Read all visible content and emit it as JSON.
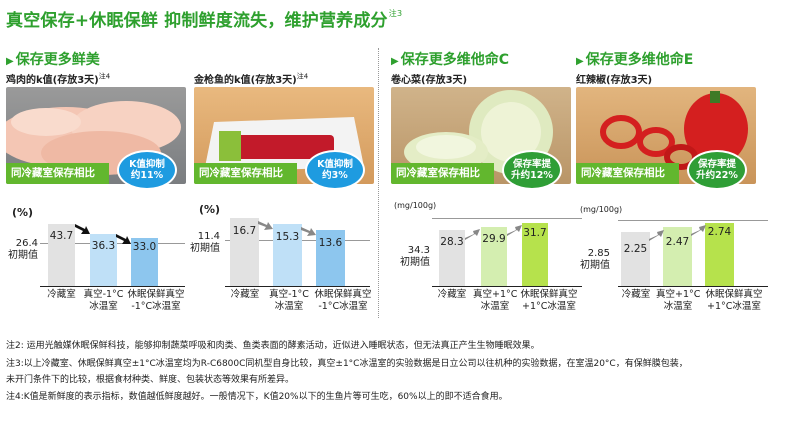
{
  "headline": {
    "text": "真空保存+休眠保鲜  抑制鲜度流失，维护营养成分",
    "note_mark": "注3"
  },
  "sections": {
    "left_title": "保存更多鲜美",
    "mid_title": "保存更多维他命C",
    "right_title": "保存更多维他命E"
  },
  "panels": [
    {
      "label": "鸡肉的k值(存放3天)",
      "note_mark": "注4",
      "compare": "同冷藏室保存相比",
      "badge": [
        "K值抑制",
        "约11%"
      ],
      "unit": "(%)",
      "base_value": "26.4",
      "base_label": "初期值",
      "bars": [
        "43.7",
        "36.3",
        "33.0"
      ],
      "xlabels": [
        [
          "冷藏室",
          ""
        ],
        [
          "真空-1°C",
          "冰温室"
        ],
        [
          "休眠保鲜真空",
          "-1°C冰温室"
        ]
      ]
    },
    {
      "label": "金枪鱼的k值(存放3天)",
      "note_mark": "注4",
      "compare": "同冷藏室保存相比",
      "badge": [
        "K值抑制",
        "约3%"
      ],
      "unit": "(%)",
      "base_value": "11.4",
      "base_label": "初期值",
      "bars": [
        "16.7",
        "15.3",
        "13.6"
      ],
      "xlabels": [
        [
          "冷藏室",
          ""
        ],
        [
          "真空-1°C",
          "冰温室"
        ],
        [
          "休眠保鲜真空",
          "-1°C冰温室"
        ]
      ]
    },
    {
      "label": "卷心菜(存放3天)",
      "note_mark": "",
      "compare": "同冷藏室保存相比",
      "badge": [
        "保存率提",
        "升约12%"
      ],
      "unit": "(mg/100g)",
      "base_value": "34.3",
      "base_label": "初期值",
      "bars": [
        "28.3",
        "29.9",
        "31.7"
      ],
      "xlabels": [
        [
          "冷藏室",
          ""
        ],
        [
          "真空+1°C",
          "冰温室"
        ],
        [
          "休眠保鲜真空",
          "+1°C冰温室"
        ]
      ]
    },
    {
      "label": "红辣椒(存放3天)",
      "note_mark": "",
      "compare": "同冷藏室保存相比",
      "badge": [
        "保存率提",
        "升约22%"
      ],
      "unit": "(mg/100g)",
      "base_value": "2.85",
      "base_label": "初期值",
      "bars": [
        "2.25",
        "2.47",
        "2.74"
      ],
      "xlabels": [
        [
          "冷藏室",
          ""
        ],
        [
          "真空+1°C",
          "冰温室"
        ],
        [
          "休眠保鲜真空",
          "+1°C冰温室"
        ]
      ]
    }
  ],
  "notes": [
    "注2: 运用光触媒休眠保鲜科技，能够抑制蔬菜呼吸和肉类、鱼类表面的酵素活动，近似进入睡眠状态，但无法真正产生生物睡眠效果。",
    "注3:以上冷藏室、休眠保鲜真空±1°C冰温室均为R-C6800C同机型自身比较，真空±1°C冰温室的实验数据是日立公司以往机种的实验数据，在室温20°C，有保鲜膜包装，",
    "未开门条件下的比较，根据食材种类、鲜度、包装状态等效果有所差异。",
    "注4:K值是新鲜度的表示指标，数值越低鲜度越好。一般情况下，K值20%以下的生鱼片等可生吃，60%以上的即不适合食用。"
  ]
}
